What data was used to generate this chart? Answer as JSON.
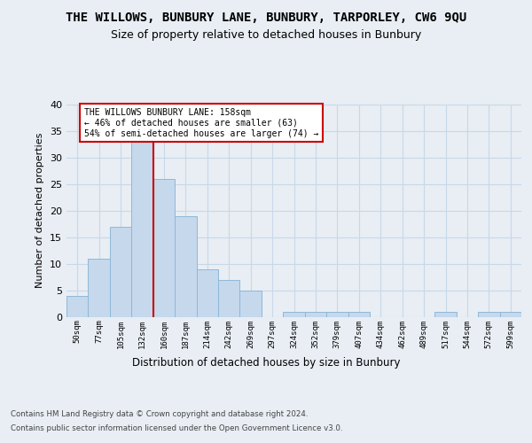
{
  "title": "THE WILLOWS, BUNBURY LANE, BUNBURY, TARPORLEY, CW6 9QU",
  "subtitle": "Size of property relative to detached houses in Bunbury",
  "xlabel": "Distribution of detached houses by size in Bunbury",
  "ylabel": "Number of detached properties",
  "footer_line1": "Contains HM Land Registry data © Crown copyright and database right 2024.",
  "footer_line2": "Contains public sector information licensed under the Open Government Licence v3.0.",
  "bin_labels": [
    "50sqm",
    "77sqm",
    "105sqm",
    "132sqm",
    "160sqm",
    "187sqm",
    "214sqm",
    "242sqm",
    "269sqm",
    "297sqm",
    "324sqm",
    "352sqm",
    "379sqm",
    "407sqm",
    "434sqm",
    "462sqm",
    "489sqm",
    "517sqm",
    "544sqm",
    "572sqm",
    "599sqm"
  ],
  "bar_values": [
    4,
    11,
    17,
    33,
    26,
    19,
    9,
    7,
    5,
    0,
    1,
    1,
    1,
    1,
    0,
    0,
    0,
    1,
    0,
    1,
    1
  ],
  "bar_color": "#c5d8ec",
  "bar_edge_color": "#8fb8d8",
  "grid_color": "#c8d8e8",
  "annotation_text_line1": "THE WILLOWS BUNBURY LANE: 158sqm",
  "annotation_text_line2": "← 46% of detached houses are smaller (63)",
  "annotation_text_line3": "54% of semi-detached houses are larger (74) →",
  "annotation_box_facecolor": "#ffffff",
  "annotation_box_edgecolor": "#cc0000",
  "vertical_line_color": "#cc0000",
  "ylim": [
    0,
    40
  ],
  "yticks": [
    0,
    5,
    10,
    15,
    20,
    25,
    30,
    35,
    40
  ],
  "background_color": "#e8eef4",
  "title_fontsize": 10,
  "subtitle_fontsize": 9
}
